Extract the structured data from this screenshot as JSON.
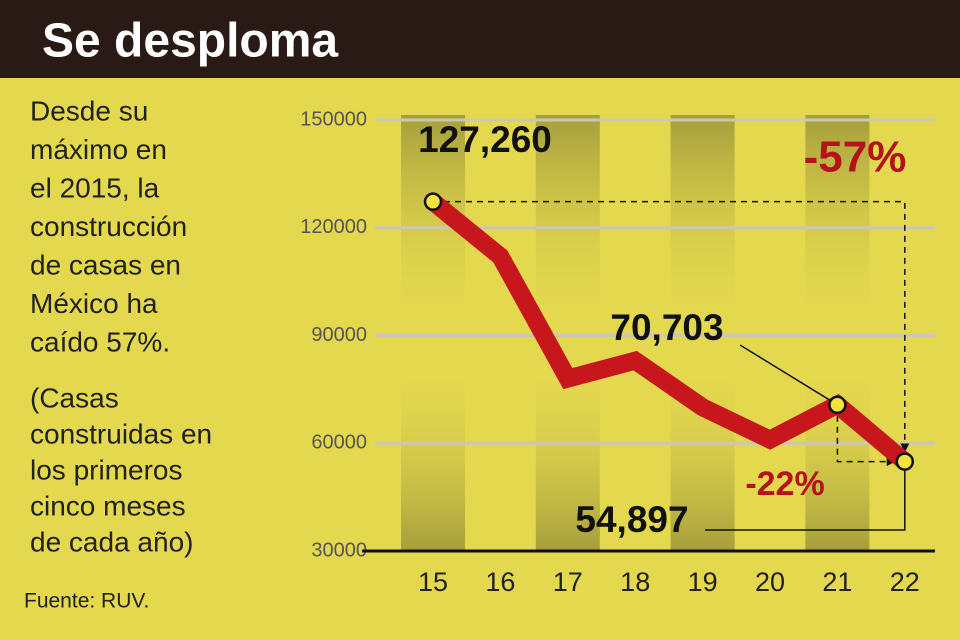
{
  "chart_data": {
    "type": "line",
    "title": "Se desploma",
    "description": [
      "Desde su",
      "máximo en",
      "el 2015, la",
      "construcción",
      "de casas en",
      "México ha",
      "caído 57%.",
      "(Casas",
      "construidas en",
      "los primeros",
      "cinco meses",
      "de cada año)"
    ],
    "source": "Fuente: RUV.",
    "categories": [
      "15",
      "16",
      "17",
      "18",
      "19",
      "20",
      "21",
      "22"
    ],
    "values": [
      127260,
      112000,
      78000,
      83000,
      70000,
      61000,
      70703,
      54897
    ],
    "value_labels": [
      "127,260",
      null,
      null,
      null,
      null,
      null,
      "70,703",
      "54,897"
    ],
    "color": "#c8161d",
    "annotations": [
      "-57%",
      "-22%"
    ],
    "annotation_color": "#b5121b",
    "ylim": [
      30000,
      150000
    ],
    "yticks": [
      30000,
      60000,
      90000,
      120000,
      150000
    ],
    "grid": true
  }
}
